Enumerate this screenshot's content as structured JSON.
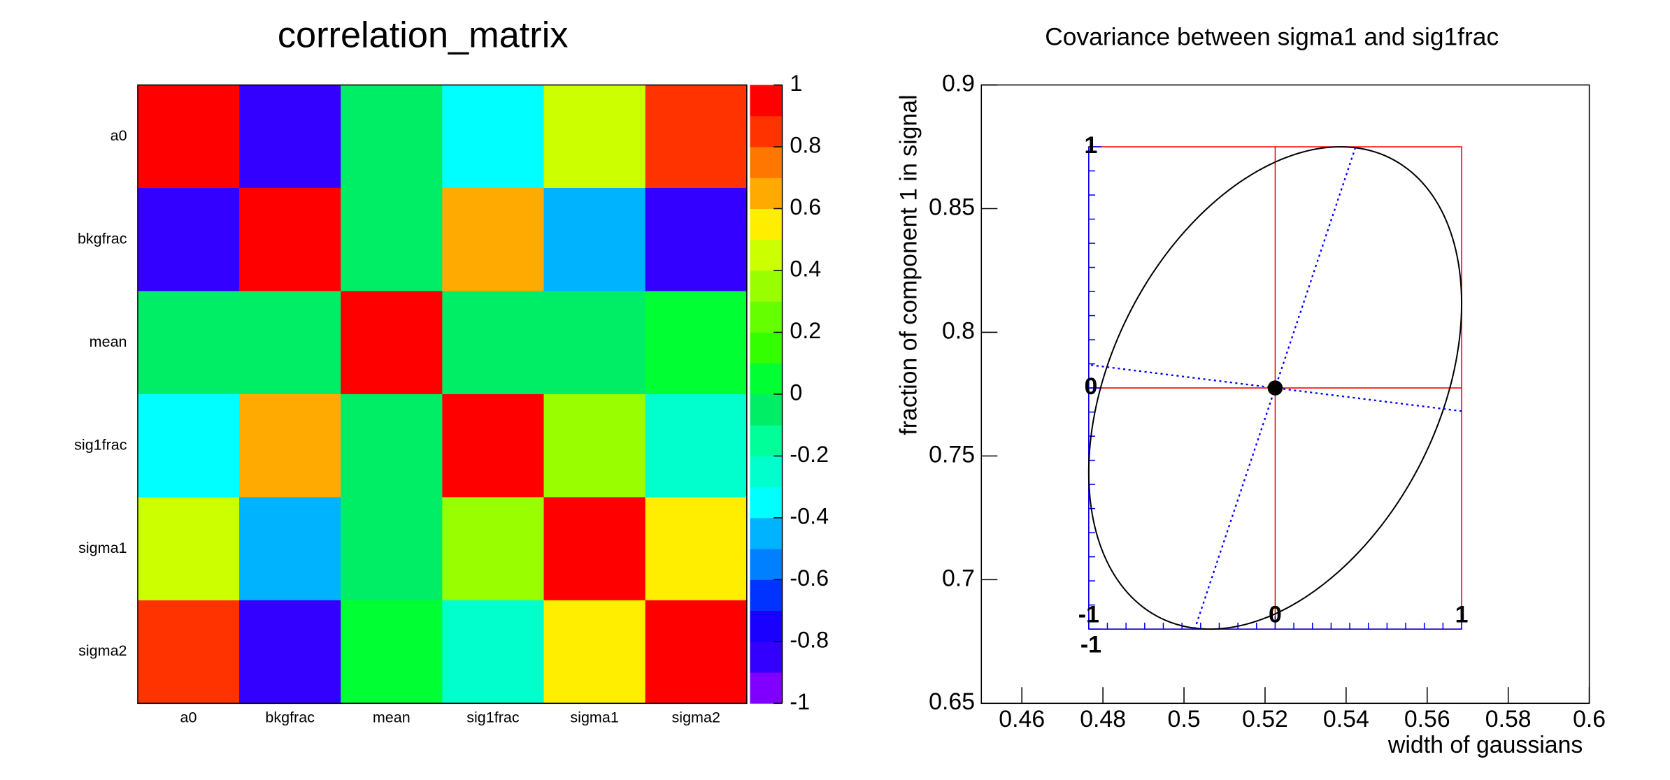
{
  "chart_data": [
    {
      "type": "heatmap",
      "title": "correlation_matrix",
      "x_categories": [
        "a0",
        "bkgfrac",
        "mean",
        "sig1frac",
        "sigma1",
        "sigma2"
      ],
      "y_categories": [
        "a0",
        "bkgfrac",
        "mean",
        "sig1frac",
        "sigma1",
        "sigma2"
      ],
      "values": [
        [
          1,
          -0.85,
          -0.05,
          -0.35,
          0.45,
          0.85
        ],
        [
          -0.85,
          1,
          -0.05,
          0.65,
          -0.45,
          -0.85
        ],
        [
          -0.05,
          -0.05,
          1,
          -0.05,
          -0.05,
          0.05
        ],
        [
          -0.35,
          0.65,
          -0.05,
          1,
          0.35,
          -0.25
        ],
        [
          0.45,
          -0.45,
          -0.05,
          0.35,
          1,
          0.55
        ],
        [
          0.85,
          -0.85,
          0.05,
          -0.25,
          0.55,
          1
        ]
      ],
      "zlim": [
        -1,
        1
      ],
      "zticks": [
        1,
        0.8,
        0.6,
        0.4,
        0.2,
        0,
        -0.2,
        -0.4,
        -0.6,
        -0.8,
        -1
      ],
      "colorscale": [
        "#7f00ff",
        "#3300ff",
        "#1a00ff",
        "#0033ff",
        "#0080ff",
        "#00b3ff",
        "#00ffff",
        "#00ffcc",
        "#00ff99",
        "#00ee66",
        "#00ff33",
        "#33ff00",
        "#66ff00",
        "#99ff00",
        "#ccff00",
        "#ffee00",
        "#ffaa00",
        "#ff7700",
        "#ff3300",
        "#ff0000"
      ]
    },
    {
      "type": "ellipse",
      "title": "Covariance between sigma1 and sig1frac",
      "x_label": "width of gaussians",
      "y_label": "fraction of component 1 in signal",
      "xlim": [
        0.45,
        0.6
      ],
      "xticks": [
        0.46,
        0.48,
        0.5,
        0.52,
        0.54,
        0.56,
        0.58,
        0.6
      ],
      "ylim": [
        0.65,
        0.9
      ],
      "yticks": [
        0.65,
        0.7,
        0.75,
        0.8,
        0.85,
        0.9
      ],
      "point": {
        "x": 0.5225,
        "y": 0.7775
      },
      "sigma_x": 0.046,
      "sigma_y": 0.0975,
      "correlation": 0.35,
      "box_ticks": [
        -1,
        0,
        1
      ],
      "ellipse_color": "#000000",
      "box_color": "#ff0000",
      "axis_color": "#0000ff"
    }
  ]
}
